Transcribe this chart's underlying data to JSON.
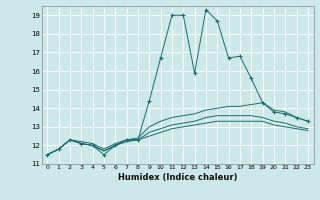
{
  "xlabel": "Humidex (Indice chaleur)",
  "bg_color": "#cce8e8",
  "line_color": "#1a6b6b",
  "grid_color": "#ffffff",
  "xlim": [
    -0.5,
    23.5
  ],
  "ylim": [
    11,
    19.5
  ],
  "yticks": [
    11,
    12,
    13,
    14,
    15,
    16,
    17,
    18,
    19
  ],
  "xticks": [
    0,
    1,
    2,
    3,
    4,
    5,
    6,
    7,
    8,
    9,
    10,
    11,
    12,
    13,
    14,
    15,
    16,
    17,
    18,
    19,
    20,
    21,
    22,
    23
  ],
  "lines": [
    {
      "x": [
        0,
        1,
        2,
        3,
        4,
        5,
        6,
        7,
        8,
        9,
        10,
        11,
        12,
        13,
        14,
        15,
        16,
        17,
        18,
        19,
        20,
        21,
        22,
        23
      ],
      "y": [
        11.5,
        11.8,
        12.3,
        12.1,
        12.0,
        11.5,
        12.0,
        12.3,
        12.3,
        14.4,
        16.7,
        19.0,
        19.0,
        15.9,
        19.3,
        18.7,
        16.7,
        16.8,
        15.6,
        14.3,
        13.8,
        13.7,
        13.5,
        13.3
      ],
      "markers": true
    },
    {
      "x": [
        0,
        1,
        2,
        3,
        4,
        5,
        6,
        7,
        8,
        9,
        10,
        11,
        12,
        13,
        14,
        15,
        16,
        17,
        18,
        19,
        20,
        21,
        22,
        23
      ],
      "y": [
        11.5,
        11.8,
        12.3,
        12.2,
        12.1,
        11.8,
        12.1,
        12.3,
        12.4,
        13.0,
        13.3,
        13.5,
        13.6,
        13.7,
        13.9,
        14.0,
        14.1,
        14.1,
        14.2,
        14.3,
        13.9,
        13.8,
        13.5,
        13.3
      ],
      "markers": false
    },
    {
      "x": [
        0,
        1,
        2,
        3,
        4,
        5,
        6,
        7,
        8,
        9,
        10,
        11,
        12,
        13,
        14,
        15,
        16,
        17,
        18,
        19,
        20,
        21,
        22,
        23
      ],
      "y": [
        11.5,
        11.8,
        12.3,
        12.1,
        12.0,
        11.7,
        12.0,
        12.3,
        12.3,
        12.7,
        12.9,
        13.1,
        13.2,
        13.3,
        13.5,
        13.6,
        13.6,
        13.6,
        13.6,
        13.5,
        13.3,
        13.2,
        13.0,
        12.9
      ],
      "markers": false
    },
    {
      "x": [
        0,
        1,
        2,
        3,
        4,
        5,
        6,
        7,
        8,
        9,
        10,
        11,
        12,
        13,
        14,
        15,
        16,
        17,
        18,
        19,
        20,
        21,
        22,
        23
      ],
      "y": [
        11.5,
        11.8,
        12.3,
        12.1,
        12.0,
        11.7,
        12.0,
        12.2,
        12.3,
        12.5,
        12.7,
        12.9,
        13.0,
        13.1,
        13.2,
        13.3,
        13.3,
        13.3,
        13.3,
        13.3,
        13.1,
        13.0,
        12.9,
        12.8
      ],
      "markers": false
    }
  ]
}
